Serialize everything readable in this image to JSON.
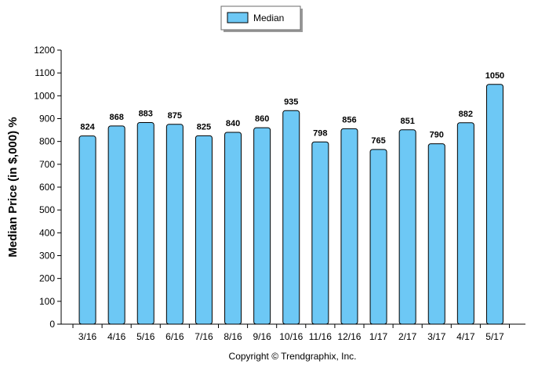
{
  "chart_data": {
    "type": "bar",
    "categories": [
      "3/16",
      "4/16",
      "5/16",
      "6/16",
      "7/16",
      "8/16",
      "9/16",
      "10/16",
      "11/16",
      "12/16",
      "1/17",
      "2/17",
      "3/17",
      "4/17",
      "5/17"
    ],
    "series": [
      {
        "name": "Median",
        "values": [
          824,
          868,
          883,
          875,
          825,
          840,
          860,
          935,
          798,
          856,
          765,
          851,
          790,
          882,
          1050
        ],
        "color": "#6DC8F5"
      }
    ],
    "data_labels": [
      "824",
      "868",
      "883",
      "875",
      "825",
      "840",
      "860",
      "935",
      "798",
      "856",
      "765",
      "851",
      "790",
      "882",
      "1050"
    ],
    "ylabel": "Median Price (in $,000) %",
    "ylim": [
      0,
      1200
    ],
    "yticks": [
      0,
      100,
      200,
      300,
      400,
      500,
      600,
      700,
      800,
      900,
      1000,
      1100,
      1200
    ],
    "grid": false,
    "legend": {
      "position": "top-center",
      "entries": [
        "Median"
      ]
    },
    "footer": "Copyright © Trendgraphix, Inc."
  }
}
